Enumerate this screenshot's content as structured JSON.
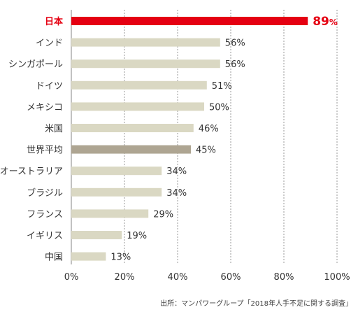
{
  "chart_data": {
    "type": "bar",
    "orientation": "horizontal",
    "categories": [
      "日本",
      "インド",
      "シンガポール",
      "ドイツ",
      "メキシコ",
      "米国",
      "世界平均",
      "オーストラリア",
      "ブラジル",
      "フランス",
      "イギリス",
      "中国"
    ],
    "values": [
      89,
      56,
      56,
      51,
      50,
      46,
      45,
      34,
      34,
      29,
      19,
      13
    ],
    "value_suffix": "%",
    "xlim": [
      0,
      100
    ],
    "xticks": [
      0,
      20,
      40,
      60,
      80,
      100
    ],
    "xtick_labels": [
      "0%",
      "20%",
      "40%",
      "60%",
      "80%",
      "100%"
    ],
    "grid": "vertical dotted",
    "highlight": {
      "日本": "#e50012",
      "世界平均": "#aea592"
    },
    "default_color": "#dad8c3"
  },
  "source": "出所：マンパワーグループ「2018年人手不足に関する調査」"
}
